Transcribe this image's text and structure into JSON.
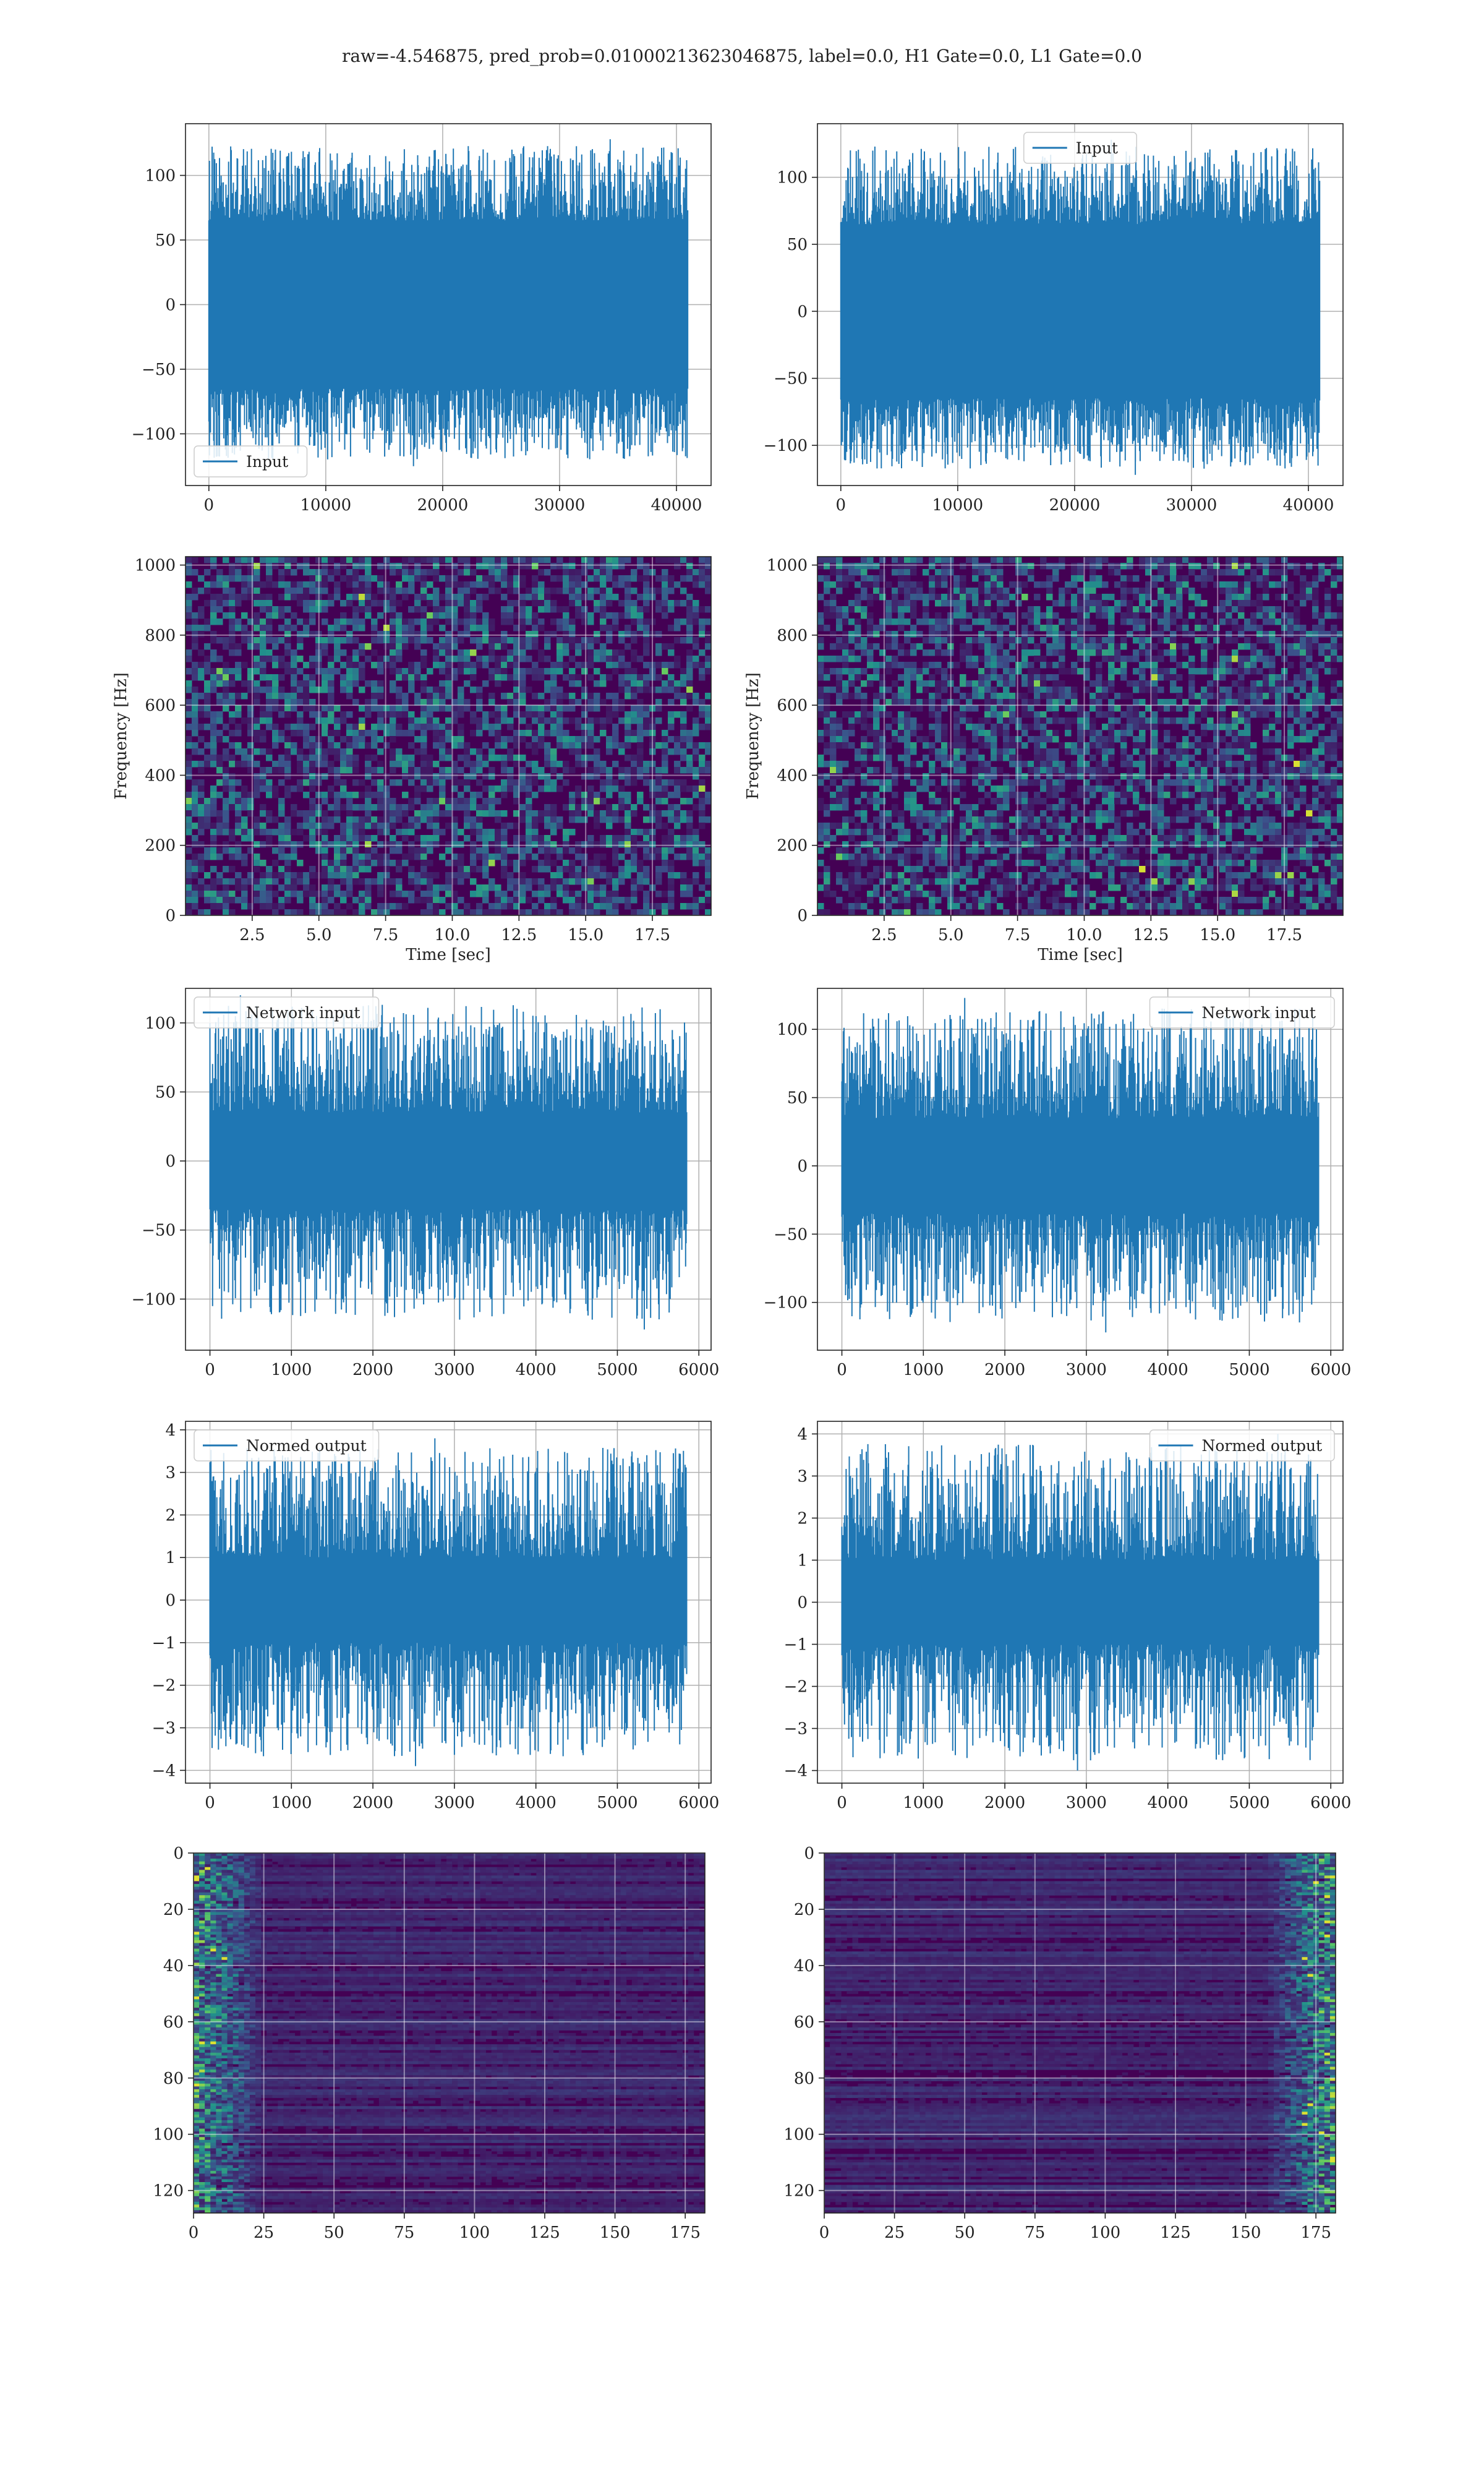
{
  "figure": {
    "title": "raw=-4.546875, pred_prob=0.01000213623046875, label=0.0, H1 Gate=0.0, L1 Gate=0.0"
  },
  "colors": {
    "series": "#1f77b4",
    "grid": "#b0b0b0",
    "axis": "#222222",
    "cmap": [
      "#440154",
      "#3b528b",
      "#21918c",
      "#5ec962",
      "#fde725"
    ]
  },
  "chart_data": [
    {
      "id": "input-h1",
      "type": "line",
      "series_name": "Input",
      "legend": "lower-left",
      "xlim": [
        -2000,
        42960
      ],
      "ylim": [
        -140,
        140
      ],
      "xticks": [
        0,
        10000,
        20000,
        30000,
        40000
      ],
      "yticks": [
        -100,
        -50,
        0,
        50,
        100
      ],
      "xticklabels": [
        "0",
        "10000",
        "20000",
        "30000",
        "40000"
      ],
      "yticklabels": [
        "−100",
        "−50",
        "0",
        "50",
        "100"
      ],
      "x_range": [
        0,
        40960
      ],
      "core_amplitude": 65,
      "peak_max": 128,
      "peak_min": -125,
      "grid": true
    },
    {
      "id": "input-l1",
      "type": "line",
      "series_name": "Input",
      "legend": "upper-center",
      "xlim": [
        -2000,
        42960
      ],
      "ylim": [
        -130,
        140
      ],
      "xticks": [
        0,
        10000,
        20000,
        30000,
        40000
      ],
      "yticks": [
        -100,
        -50,
        0,
        50,
        100
      ],
      "xticklabels": [
        "0",
        "10000",
        "20000",
        "30000",
        "40000"
      ],
      "yticklabels": [
        "−100",
        "−50",
        "0",
        "50",
        "100"
      ],
      "x_range": [
        0,
        40960
      ],
      "core_amplitude": 65,
      "peak_max": 128,
      "peak_min": -122,
      "grid": true
    },
    {
      "id": "spec-h1",
      "type": "heatmap",
      "xlabel": "Time [sec]",
      "ylabel": "Frequency [Hz]",
      "xlim": [
        0,
        19.7
      ],
      "ylim": [
        0,
        1024
      ],
      "xticks": [
        2.5,
        5.0,
        7.5,
        10.0,
        12.5,
        15.0,
        17.5
      ],
      "yticks": [
        0,
        200,
        400,
        600,
        800,
        1000
      ],
      "xticklabels": [
        "2.5",
        "5.0",
        "7.5",
        "10.0",
        "12.5",
        "15.0",
        "17.5"
      ],
      "yticklabels": [
        "0",
        "200",
        "400",
        "600",
        "800",
        "1000"
      ],
      "texture": "noise",
      "grid": true
    },
    {
      "id": "spec-l1",
      "type": "heatmap",
      "xlabel": "Time [sec]",
      "ylabel": "Frequency [Hz]",
      "xlim": [
        0,
        19.7
      ],
      "ylim": [
        0,
        1024
      ],
      "xticks": [
        2.5,
        5.0,
        7.5,
        10.0,
        12.5,
        15.0,
        17.5
      ],
      "yticks": [
        0,
        200,
        400,
        600,
        800,
        1000
      ],
      "xticklabels": [
        "2.5",
        "5.0",
        "7.5",
        "10.0",
        "12.5",
        "15.0",
        "17.5"
      ],
      "yticklabels": [
        "0",
        "200",
        "400",
        "600",
        "800",
        "1000"
      ],
      "texture": "noise",
      "grid": true
    },
    {
      "id": "net-h1",
      "type": "line",
      "series_name": "Network input",
      "legend": "upper-left",
      "xlim": [
        -300,
        6150
      ],
      "ylim": [
        -137,
        125
      ],
      "xticks": [
        0,
        1000,
        2000,
        3000,
        4000,
        5000,
        6000
      ],
      "yticks": [
        -100,
        -50,
        0,
        50,
        100
      ],
      "xticklabels": [
        "0",
        "1000",
        "2000",
        "3000",
        "4000",
        "5000",
        "6000"
      ],
      "yticklabels": [
        "−100",
        "−50",
        "0",
        "50",
        "100"
      ],
      "x_range": [
        0,
        5850
      ],
      "core_amplitude": 35,
      "peak_max": 120,
      "peak_min": -122,
      "grid": true
    },
    {
      "id": "net-l1",
      "type": "line",
      "series_name": "Network input",
      "legend": "upper-right",
      "xlim": [
        -300,
        6150
      ],
      "ylim": [
        -135,
        130
      ],
      "xticks": [
        0,
        1000,
        2000,
        3000,
        4000,
        5000,
        6000
      ],
      "yticks": [
        -100,
        -50,
        0,
        50,
        100
      ],
      "xticklabels": [
        "0",
        "1000",
        "2000",
        "3000",
        "4000",
        "5000",
        "6000"
      ],
      "yticklabels": [
        "−100",
        "−50",
        "0",
        "50",
        "100"
      ],
      "x_range": [
        0,
        5850
      ],
      "core_amplitude": 35,
      "peak_max": 123,
      "peak_min": -122,
      "grid": true
    },
    {
      "id": "norm-h1",
      "type": "line",
      "series_name": "Normed output",
      "legend": "upper-left",
      "xlim": [
        -300,
        6150
      ],
      "ylim": [
        -4.3,
        4.2
      ],
      "xticks": [
        0,
        1000,
        2000,
        3000,
        4000,
        5000,
        6000
      ],
      "yticks": [
        -4,
        -3,
        -2,
        -1,
        0,
        1,
        2,
        3,
        4
      ],
      "xticklabels": [
        "0",
        "1000",
        "2000",
        "3000",
        "4000",
        "5000",
        "6000"
      ],
      "yticklabels": [
        "−4",
        "−3",
        "−2",
        "−1",
        "0",
        "1",
        "2",
        "3",
        "4"
      ],
      "x_range": [
        0,
        5850
      ],
      "core_amplitude": 1.0,
      "peak_max": 3.8,
      "peak_min": -3.9,
      "grid": true
    },
    {
      "id": "norm-l1",
      "type": "line",
      "series_name": "Normed output",
      "legend": "upper-right",
      "xlim": [
        -300,
        6150
      ],
      "ylim": [
        -4.3,
        4.3
      ],
      "xticks": [
        0,
        1000,
        2000,
        3000,
        4000,
        5000,
        6000
      ],
      "yticks": [
        -4,
        -3,
        -2,
        -1,
        0,
        1,
        2,
        3,
        4
      ],
      "xticklabels": [
        "0",
        "1000",
        "2000",
        "3000",
        "4000",
        "5000",
        "6000"
      ],
      "yticklabels": [
        "−4",
        "−3",
        "−2",
        "−1",
        "0",
        "1",
        "2",
        "3",
        "4"
      ],
      "x_range": [
        0,
        5850
      ],
      "core_amplitude": 1.0,
      "peak_max": 4.0,
      "peak_min": -4.0,
      "grid": true
    },
    {
      "id": "feat-h1",
      "type": "heatmap",
      "xlim": [
        0,
        182
      ],
      "ylim": [
        128,
        0
      ],
      "xticks": [
        0,
        25,
        50,
        75,
        100,
        125,
        150,
        175
      ],
      "yticks": [
        0,
        20,
        40,
        60,
        80,
        100,
        120
      ],
      "xticklabels": [
        "0",
        "25",
        "50",
        "75",
        "100",
        "125",
        "150",
        "175"
      ],
      "yticklabels": [
        "0",
        "20",
        "40",
        "60",
        "80",
        "100",
        "120"
      ],
      "texture": "bands-bright-left",
      "grid": true
    },
    {
      "id": "feat-l1",
      "type": "heatmap",
      "xlim": [
        0,
        182
      ],
      "ylim": [
        128,
        0
      ],
      "xticks": [
        0,
        25,
        50,
        75,
        100,
        125,
        150,
        175
      ],
      "yticks": [
        0,
        20,
        40,
        60,
        80,
        100,
        120
      ],
      "xticklabels": [
        "0",
        "25",
        "50",
        "75",
        "100",
        "125",
        "150",
        "175"
      ],
      "yticklabels": [
        "0",
        "20",
        "40",
        "60",
        "80",
        "100",
        "120"
      ],
      "texture": "bands-bright-right",
      "grid": true
    }
  ]
}
